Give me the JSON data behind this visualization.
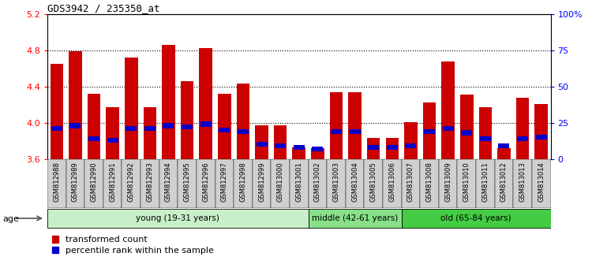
{
  "title": "GDS3942 / 235350_at",
  "samples": [
    "GSM812988",
    "GSM812989",
    "GSM812990",
    "GSM812991",
    "GSM812992",
    "GSM812993",
    "GSM812994",
    "GSM812995",
    "GSM812996",
    "GSM812997",
    "GSM812998",
    "GSM812999",
    "GSM813000",
    "GSM813001",
    "GSM813002",
    "GSM813003",
    "GSM813004",
    "GSM813005",
    "GSM813006",
    "GSM813007",
    "GSM813008",
    "GSM813009",
    "GSM813010",
    "GSM813011",
    "GSM813012",
    "GSM813013",
    "GSM813014"
  ],
  "red_values": [
    4.65,
    4.79,
    4.32,
    4.17,
    4.72,
    4.17,
    4.86,
    4.46,
    4.82,
    4.32,
    4.43,
    3.97,
    3.97,
    3.73,
    3.72,
    4.34,
    4.34,
    3.83,
    3.83,
    4.01,
    4.22,
    4.68,
    4.31,
    4.17,
    3.72,
    4.28,
    4.21
  ],
  "percentile_values": [
    21,
    23,
    14,
    13,
    21,
    21,
    23,
    22,
    24,
    20,
    19,
    10,
    9,
    8,
    7,
    19,
    19,
    8,
    8,
    9,
    19,
    21,
    18,
    14,
    9,
    14,
    15
  ],
  "ylim": [
    3.6,
    5.2
  ],
  "yticks_left": [
    3.6,
    4.0,
    4.4,
    4.8,
    5.2
  ],
  "yticks_right": [
    0,
    25,
    50,
    75,
    100
  ],
  "groups": [
    {
      "label": "young (19-31 years)",
      "start": 0,
      "end": 14,
      "color": "#c8f0c8"
    },
    {
      "label": "middle (42-61 years)",
      "start": 14,
      "end": 19,
      "color": "#88e088"
    },
    {
      "label": "old (65-84 years)",
      "start": 19,
      "end": 27,
      "color": "#44cc44"
    }
  ],
  "bar_color": "#cc0000",
  "blue_color": "#0000cc",
  "bar_width": 0.7,
  "grid_lines": [
    4.0,
    4.4,
    4.8
  ],
  "xticklabel_bg": "#d0d0d0"
}
